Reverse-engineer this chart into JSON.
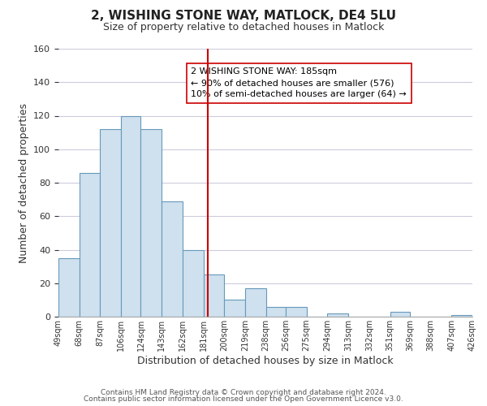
{
  "title": "2, WISHING STONE WAY, MATLOCK, DE4 5LU",
  "subtitle": "Size of property relative to detached houses in Matlock",
  "xlabel": "Distribution of detached houses by size in Matlock",
  "ylabel": "Number of detached properties",
  "bar_edges": [
    49,
    68,
    87,
    106,
    124,
    143,
    162,
    181,
    200,
    219,
    238,
    256,
    275,
    294,
    313,
    332,
    351,
    369,
    388,
    407,
    426
  ],
  "bar_heights": [
    35,
    86,
    112,
    120,
    112,
    69,
    40,
    25,
    10,
    17,
    6,
    6,
    0,
    2,
    0,
    0,
    3,
    0,
    0,
    1
  ],
  "bar_color": "#cfe0ee",
  "bar_edgecolor": "#6699bb",
  "ylim": [
    0,
    160
  ],
  "vline_x": 185,
  "vline_color": "#cc0000",
  "annotation_line1": "2 WISHING STONE WAY: 185sqm",
  "annotation_line2": "← 90% of detached houses are smaller (576)",
  "annotation_line3": "10% of semi-detached houses are larger (64) →",
  "annotation_fontsize": 8,
  "box_edgecolor": "#cc0000",
  "tick_labels": [
    "49sqm",
    "68sqm",
    "87sqm",
    "106sqm",
    "124sqm",
    "143sqm",
    "162sqm",
    "181sqm",
    "200sqm",
    "219sqm",
    "238sqm",
    "256sqm",
    "275sqm",
    "294sqm",
    "313sqm",
    "332sqm",
    "351sqm",
    "369sqm",
    "388sqm",
    "407sqm",
    "426sqm"
  ],
  "footnote1": "Contains HM Land Registry data © Crown copyright and database right 2024.",
  "footnote2": "Contains public sector information licensed under the Open Government Licence v3.0.",
  "background_color": "#ffffff",
  "grid_color": "#ccccdd",
  "title_fontsize": 11,
  "subtitle_fontsize": 9,
  "xlabel_fontsize": 9,
  "ylabel_fontsize": 9
}
